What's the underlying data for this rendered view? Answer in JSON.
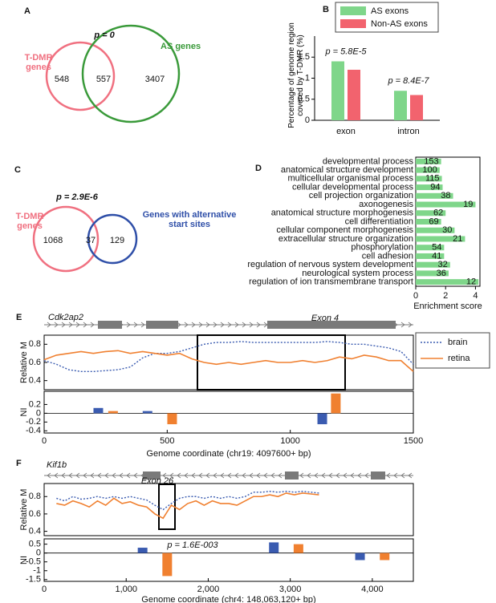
{
  "chart_data": [
    {
      "type": "venn",
      "panel": "A",
      "annotation": "p = 0",
      "sets": [
        {
          "name": "T-DMR genes",
          "color": "#f07080"
        },
        {
          "name": "AS genes",
          "color": "#3a9a3a"
        }
      ],
      "values": [
        548,
        557,
        3407
      ]
    },
    {
      "type": "bar",
      "panel": "B",
      "ylabel": "Percentage of genome region covered by T-DMR (%)",
      "categories": [
        "exon",
        "intron"
      ],
      "series": [
        {
          "name": "AS exons",
          "color": "#7fd68a",
          "values": [
            1.4,
            0.7
          ]
        },
        {
          "name": "Non-AS exons",
          "color": "#f2636e",
          "values": [
            1.2,
            0.6
          ]
        }
      ],
      "annotations": [
        "p = 5.8E-5",
        "p = 8.4E-7"
      ],
      "ylim": [
        0,
        2
      ],
      "yticks": [
        0,
        0.5,
        1,
        1.5
      ],
      "legend": "top"
    },
    {
      "type": "venn",
      "panel": "C",
      "annotation": "p = 2.9E-6",
      "sets": [
        {
          "name": "T-DMR genes",
          "color": "#f07080"
        },
        {
          "name": "Genes with alternative start sites",
          "color": "#2f4fa8"
        }
      ],
      "values": [
        1068,
        37,
        129
      ]
    },
    {
      "type": "hbar",
      "panel": "D",
      "xlabel": "Enrichment score",
      "color": "#7fd68a",
      "categories": [
        "developmental process",
        "anatomical structure development",
        "multicellular organismal process",
        "cellular developmental process",
        "cell projection organization",
        "axonogenesis",
        "anatomical structure morphogenesis",
        "cell differentiation",
        "cellular component morphogenesis",
        "extracellular structure organization",
        "phosphorylation",
        "cell adhesion",
        "regulation of nervous system development",
        "neurological system process",
        "regulation of ion transmembrane transport"
      ],
      "values": [
        1.7,
        1.6,
        1.75,
        1.8,
        2.5,
        4.0,
        2.0,
        1.7,
        2.6,
        3.3,
        1.9,
        1.9,
        2.3,
        2.2,
        4.2
      ],
      "counts": [
        153,
        100,
        115,
        94,
        38,
        19,
        62,
        69,
        30,
        21,
        54,
        41,
        32,
        36,
        12
      ],
      "xlim": [
        0,
        4.3
      ],
      "xticks": [
        0,
        2,
        4
      ]
    },
    {
      "type": "track",
      "panel": "E",
      "gene": "Cdk2ap2",
      "exon": "Exon 4",
      "ylabel": "Relative M",
      "ni_label": "NI",
      "xlabel": "Genome coordinate (chr19: 4097600+ bp)",
      "xlim": [
        0,
        1500
      ],
      "xticks": [
        0,
        500,
        1000,
        1500
      ],
      "ylim": [
        0.3,
        0.9
      ],
      "yticks": [
        0.4,
        0.6,
        0.8
      ],
      "x": [
        0,
        50,
        100,
        150,
        200,
        250,
        300,
        350,
        400,
        450,
        500,
        550,
        600,
        650,
        700,
        750,
        800,
        850,
        900,
        950,
        1000,
        1050,
        1100,
        1150,
        1200,
        1250,
        1300,
        1350,
        1400,
        1450,
        1500
      ],
      "series": [
        {
          "name": "brain",
          "color": "#3a5bb0",
          "values": [
            0.62,
            0.58,
            0.52,
            0.5,
            0.5,
            0.51,
            0.52,
            0.55,
            0.65,
            0.7,
            0.7,
            0.72,
            0.76,
            0.8,
            0.82,
            0.82,
            0.83,
            0.82,
            0.82,
            0.82,
            0.82,
            0.82,
            0.82,
            0.83,
            0.82,
            0.8,
            0.8,
            0.78,
            0.76,
            0.72,
            0.58
          ]
        },
        {
          "name": "retina",
          "color": "#f08030",
          "values": [
            0.63,
            0.68,
            0.7,
            0.72,
            0.7,
            0.72,
            0.73,
            0.7,
            0.72,
            0.7,
            0.68,
            0.7,
            0.64,
            0.6,
            0.58,
            0.6,
            0.58,
            0.6,
            0.62,
            0.6,
            0.6,
            0.62,
            0.6,
            0.62,
            0.66,
            0.64,
            0.68,
            0.66,
            0.62,
            0.62,
            0.5
          ]
        }
      ],
      "ni_ylim": [
        -0.45,
        0.5
      ],
      "ni_yticks": [
        -0.4,
        -0.2,
        0,
        0.2
      ],
      "ni_series": [
        {
          "x": [
            220,
            420,
            1130
          ],
          "values": [
            0.12,
            0.05,
            -0.25
          ]
        },
        {
          "x": [
            280,
            520,
            1185
          ],
          "values": [
            0.05,
            -0.25,
            0.45
          ]
        }
      ],
      "legend": "right"
    },
    {
      "type": "track",
      "panel": "F",
      "gene": "Kif1b",
      "exon": "Exon 26",
      "ylabel": "Relative M",
      "ni_label": "NI",
      "xlabel": "Genome coordinate (chr4: 148,063,120+ bp)",
      "annotation": "p = 1.6E-003",
      "xlim": [
        0,
        4500
      ],
      "xticks": [
        0,
        {
          "value": 1000,
          "label": "1,000"
        },
        {
          "value": 2000,
          "label": "2,000"
        },
        {
          "value": 3000,
          "label": "3,000"
        },
        {
          "value": 4000,
          "label": "4,000"
        }
      ],
      "ylim": [
        0.35,
        0.95
      ],
      "yticks": [
        0.4,
        0.6,
        0.8
      ],
      "x": [
        150,
        250,
        350,
        450,
        550,
        650,
        750,
        850,
        950,
        1050,
        1150,
        1250,
        1350,
        1450,
        1550,
        1650,
        1750,
        1850,
        1950,
        2050,
        2150,
        2250,
        2350,
        2450,
        2550,
        2650,
        2750,
        2850,
        2950,
        3050,
        3150,
        3250,
        3350
      ],
      "series": [
        {
          "name": "brain",
          "color": "#3a5bb0",
          "values": [
            0.78,
            0.75,
            0.8,
            0.77,
            0.78,
            0.8,
            0.78,
            0.8,
            0.78,
            0.8,
            0.78,
            0.76,
            0.7,
            0.65,
            0.72,
            0.78,
            0.8,
            0.8,
            0.78,
            0.8,
            0.78,
            0.8,
            0.78,
            0.8,
            0.85,
            0.85,
            0.86,
            0.85,
            0.86,
            0.85,
            0.86,
            0.85,
            0.84
          ]
        },
        {
          "name": "retina",
          "color": "#f08030",
          "values": [
            0.72,
            0.7,
            0.75,
            0.72,
            0.68,
            0.75,
            0.7,
            0.78,
            0.72,
            0.74,
            0.7,
            0.68,
            0.6,
            0.55,
            0.7,
            0.65,
            0.72,
            0.75,
            0.7,
            0.75,
            0.72,
            0.72,
            0.7,
            0.75,
            0.8,
            0.8,
            0.82,
            0.8,
            0.84,
            0.82,
            0.84,
            0.83,
            0.82
          ]
        }
      ],
      "ni_ylim": [
        -1.6,
        0.8
      ],
      "ni_yticks": [
        -1.5,
        -1,
        -0.5,
        0,
        0.5
      ],
      "ni_series": [
        {
          "x": [
            1200,
            2800,
            3850
          ],
          "values": [
            0.3,
            0.6,
            -0.4
          ]
        },
        {
          "x": [
            1500,
            3100,
            4150
          ],
          "values": [
            -1.3,
            0.5,
            -0.4
          ]
        }
      ]
    }
  ]
}
